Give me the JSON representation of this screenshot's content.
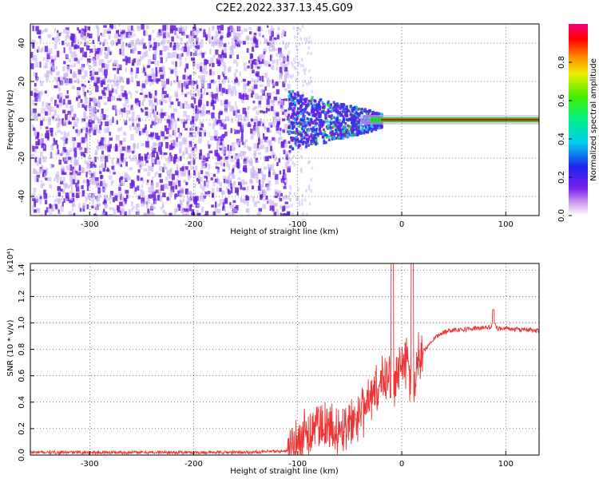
{
  "figure_title": "C2E2.2022.337.13.45.G09",
  "colors": {
    "snr_line": "#ee3333",
    "dense_purple": "#6a1fe0",
    "light_purple": "#c9b2f3",
    "blue": "#3333ee",
    "cyan": "#11cccc",
    "green": "#22dd22",
    "red": "#ee1111"
  },
  "chart_data": [
    {
      "type": "heatmap",
      "title": "C2E2.2022.337.13.45.G09",
      "xlabel": "Height of straight line (km)",
      "ylabel": "Frequency (Hz)",
      "xlim": [
        -357,
        132
      ],
      "ylim": [
        -50,
        50
      ],
      "x_ticks": [
        -300,
        -200,
        -100,
        0,
        100
      ],
      "y_ticks": [
        -40,
        -20,
        0,
        20,
        40
      ],
      "x_tick_labels": [
        "-300",
        "-200",
        "-100",
        "0",
        "100"
      ],
      "y_tick_labels": [
        "-40",
        "-20",
        "0",
        "20",
        "40"
      ],
      "grid": true,
      "description_regions": [
        {
          "x_range": [
            -357,
            -110
          ],
          "y_range": [
            -50,
            50
          ],
          "amplitude": "low, broadband"
        },
        {
          "x_range": [
            -110,
            -40
          ],
          "y_range": [
            -15,
            15
          ],
          "amplitude": "medium"
        },
        {
          "x_range": [
            -40,
            132
          ],
          "y_range": [
            -1.5,
            1.5
          ],
          "amplitude": "high, narrow carrier"
        }
      ],
      "colorbar": {
        "label": "Normalized spectral amplitude",
        "range": [
          0.0,
          1.0
        ],
        "ticks": [
          0.0,
          0.2,
          0.4,
          0.6,
          0.8
        ],
        "tick_labels": [
          "0.0",
          "0.2",
          "0.4",
          "0.6",
          "0.8"
        ]
      }
    },
    {
      "type": "line",
      "xlabel": "Height of straight line (km)",
      "ylabel": "SNR (10 * v/v)",
      "multiplier_label": "(x10⁴)",
      "xlim": [
        -357,
        132
      ],
      "ylim": [
        0,
        1.45
      ],
      "x_ticks": [
        -300,
        -200,
        -100,
        0,
        100
      ],
      "y_ticks": [
        0.0,
        0.2,
        0.4,
        0.6,
        0.8,
        1.0,
        1.2,
        1.4
      ],
      "x_tick_labels": [
        "-300",
        "-200",
        "-100",
        "0",
        "100"
      ],
      "y_tick_labels": [
        "0.0",
        "0.2",
        "0.4",
        "0.6",
        "0.8",
        "1.0",
        "1.2",
        "1.4"
      ],
      "grid": true,
      "series": [
        {
          "x": [
            -357,
            -300,
            -250,
            -200,
            -150,
            -110,
            -100,
            -90,
            -80,
            -70,
            -60,
            -50,
            -40,
            -35,
            -30,
            -25,
            -20,
            -15,
            -12,
            -10,
            -8,
            -5,
            0,
            5,
            8,
            10,
            12,
            15,
            20,
            25,
            30,
            40,
            50,
            60,
            70,
            80,
            85,
            88,
            92,
            100,
            110,
            120,
            132
          ],
          "y": [
            0.02,
            0.02,
            0.02,
            0.02,
            0.02,
            0.03,
            0.1,
            0.2,
            0.22,
            0.18,
            0.2,
            0.25,
            0.3,
            0.35,
            0.4,
            0.5,
            0.55,
            0.6,
            0.65,
            0.5,
            0.45,
            0.6,
            0.65,
            0.7,
            0.6,
            0.25,
            0.55,
            0.7,
            0.78,
            0.82,
            0.88,
            0.93,
            0.95,
            0.95,
            0.96,
            0.96,
            0.97,
            1.0,
            0.96,
            0.96,
            0.95,
            0.95,
            0.94
          ]
        }
      ]
    }
  ]
}
